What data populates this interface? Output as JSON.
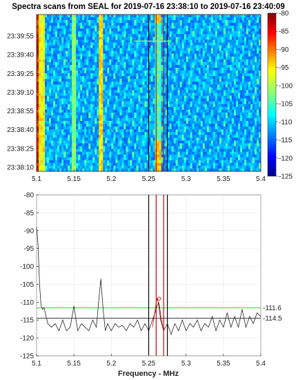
{
  "chart_data": [
    {
      "type": "heatmap",
      "title": "Spectra scans from SEAL for 2019-07-16 23:38:10 to 2019-07-16 23:40:09",
      "xlim": [
        5.1,
        5.4
      ],
      "x_ticks": [
        "5.1",
        "5.15",
        "5.2",
        "5.25",
        "5.3",
        "5.35",
        "5.4"
      ],
      "y_ticks": [
        "23:39:55",
        "23:39:40",
        "23:39:25",
        "23:39:10",
        "23:38:55",
        "23:38:40",
        "23:38:25",
        "23:38:10"
      ],
      "colorbar": {
        "min": -125,
        "max": -80,
        "ticks": [
          "-80",
          "-85",
          "-90",
          "-95",
          "-100",
          "-105",
          "-110",
          "-115",
          "-120",
          "-125"
        ]
      },
      "colormap": "jet",
      "marker_lines_x": [
        5.25,
        5.26,
        5.27,
        5.275
      ],
      "marker_colors": [
        "#000000",
        "#cc0000",
        "#cc0000",
        "#000000"
      ],
      "hline": {
        "x_range": [
          5.23,
          5.28
        ],
        "y_time": "23:39:49",
        "color": "#a8e070"
      }
    },
    {
      "type": "line",
      "xlabel": "Frequency - MHz",
      "xlim": [
        5.1,
        5.4
      ],
      "ylim": [
        -125,
        -80
      ],
      "x_ticks": [
        "5.1",
        "5.15",
        "5.2",
        "5.25",
        "5.3",
        "5.35",
        "5.4"
      ],
      "y_ticks": [
        "-80",
        "-85",
        "-90",
        "-95",
        "-100",
        "-105",
        "-110",
        "-115",
        "-120",
        "-125"
      ],
      "series": [
        {
          "color": "#222222",
          "x": [
            5.1,
            5.102,
            5.104,
            5.106,
            5.108,
            5.11,
            5.115,
            5.12,
            5.125,
            5.13,
            5.135,
            5.14,
            5.145,
            5.15,
            5.155,
            5.16,
            5.165,
            5.17,
            5.175,
            5.18,
            5.183,
            5.186,
            5.189,
            5.192,
            5.195,
            5.2,
            5.205,
            5.21,
            5.215,
            5.22,
            5.225,
            5.23,
            5.235,
            5.24,
            5.245,
            5.25,
            5.255,
            5.26,
            5.263,
            5.266,
            5.27,
            5.275,
            5.28,
            5.285,
            5.29,
            5.295,
            5.3,
            5.305,
            5.31,
            5.315,
            5.32,
            5.325,
            5.33,
            5.335,
            5.34,
            5.345,
            5.35,
            5.355,
            5.36,
            5.365,
            5.37,
            5.375,
            5.38,
            5.385,
            5.39,
            5.395,
            5.4
          ],
          "y": [
            -89,
            -94,
            -105,
            -111,
            -112,
            -111.5,
            -116,
            -117,
            -116,
            -118,
            -115,
            -118,
            -117,
            -111,
            -118,
            -116,
            -117,
            -118,
            -115,
            -117,
            -110,
            -103.5,
            -112,
            -118,
            -116,
            -118,
            -116,
            -117,
            -116.5,
            -118,
            -116,
            -117,
            -115,
            -118,
            -116,
            -118,
            -115,
            -112,
            -110,
            -115,
            -118,
            -116,
            -119,
            -116,
            -118,
            -115,
            -118,
            -116,
            -117,
            -115,
            -118,
            -116,
            -117,
            -114,
            -118,
            -115,
            -117,
            -113,
            -117,
            -114,
            -117,
            -112,
            -117,
            -114,
            -116,
            -113,
            -114
          ]
        },
        {
          "color": "#cc0000",
          "x": [
            5.255,
            5.258,
            5.261,
            5.264,
            5.267,
            5.27
          ],
          "y": [
            -117,
            -113,
            -109,
            -110.5,
            -115,
            -118
          ]
        }
      ],
      "hlines": [
        {
          "value": -111.6,
          "label": "-111.6",
          "color": "#33cc33"
        },
        {
          "value": -114.5,
          "label": "-114.5",
          "color": "#333333"
        }
      ],
      "marker_lines_x": [
        5.25,
        5.26,
        5.27,
        5.275
      ],
      "marker_colors": [
        "#000000",
        "#cc0000",
        "#cc0000",
        "#000000"
      ],
      "peak_marker": {
        "x": 5.264,
        "y": -109,
        "color": "#cc0000"
      }
    }
  ]
}
